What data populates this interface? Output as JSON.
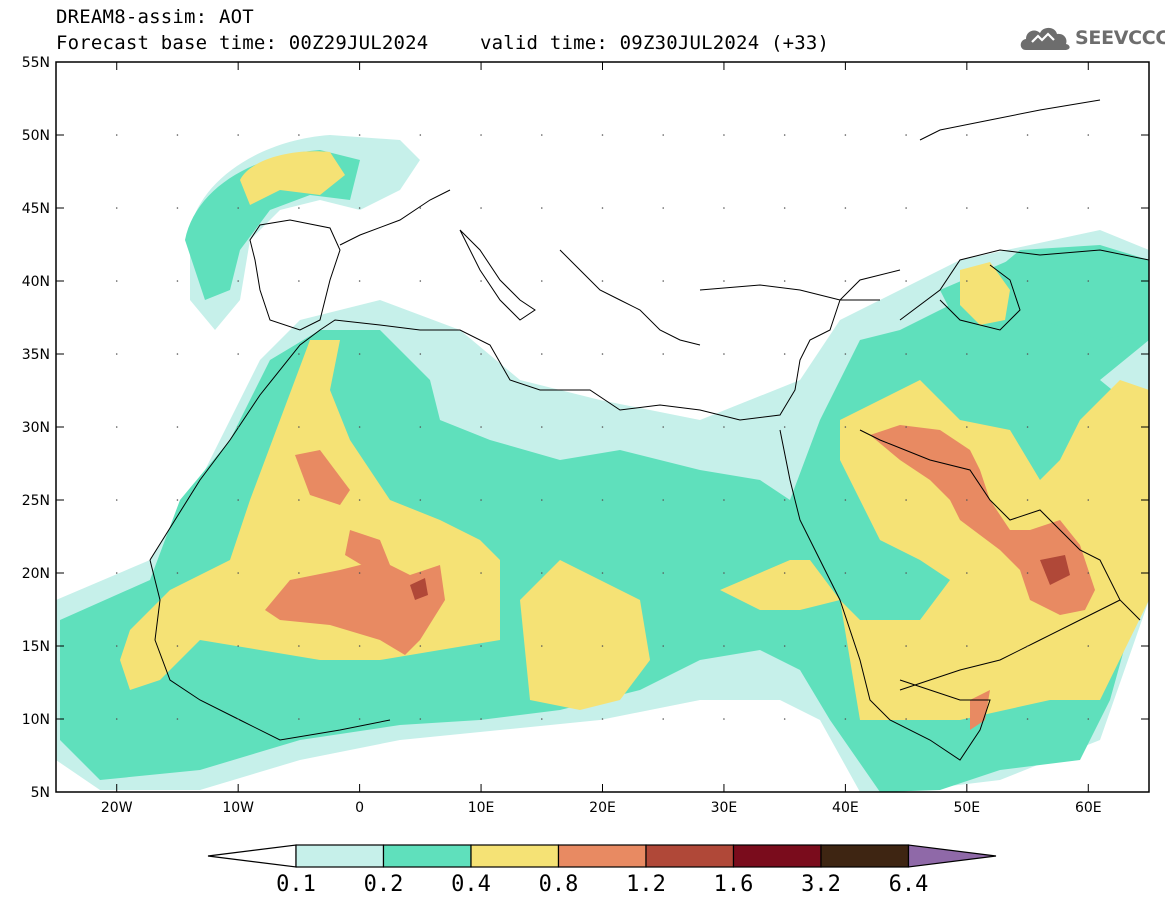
{
  "header": {
    "line1": "DREAM8-assim: AOT",
    "line2": "Forecast base time: 00Z29JUL2024",
    "line3": "valid time: 09Z30JUL2024 (+33)"
  },
  "logo": {
    "text": "SEEVCCC",
    "icon": "cloud-icon",
    "color": "#6d6d6d"
  },
  "map": {
    "lon_range": [
      -25,
      65
    ],
    "lat_range": [
      5,
      55
    ],
    "lon_ticks": [
      "20W",
      "10W",
      "0",
      "10E",
      "20E",
      "30E",
      "40E",
      "50E",
      "60E"
    ],
    "lat_ticks": [
      "55N",
      "50N",
      "45N",
      "40N",
      "35N",
      "30N",
      "25N",
      "20N",
      "15N",
      "10N",
      "5N"
    ]
  },
  "colorbar": {
    "bounds": [
      "0.1",
      "0.2",
      "0.4",
      "0.8",
      "1.2",
      "1.6",
      "3.2",
      "6.4"
    ],
    "colors": [
      "#c6f0ea",
      "#5fe0bc",
      "#f5e275",
      "#e88a62",
      "#b04838",
      "#7a0c1c",
      "#3e2512"
    ],
    "under_color": "#ffffff",
    "over_color": "#8f69a8"
  }
}
